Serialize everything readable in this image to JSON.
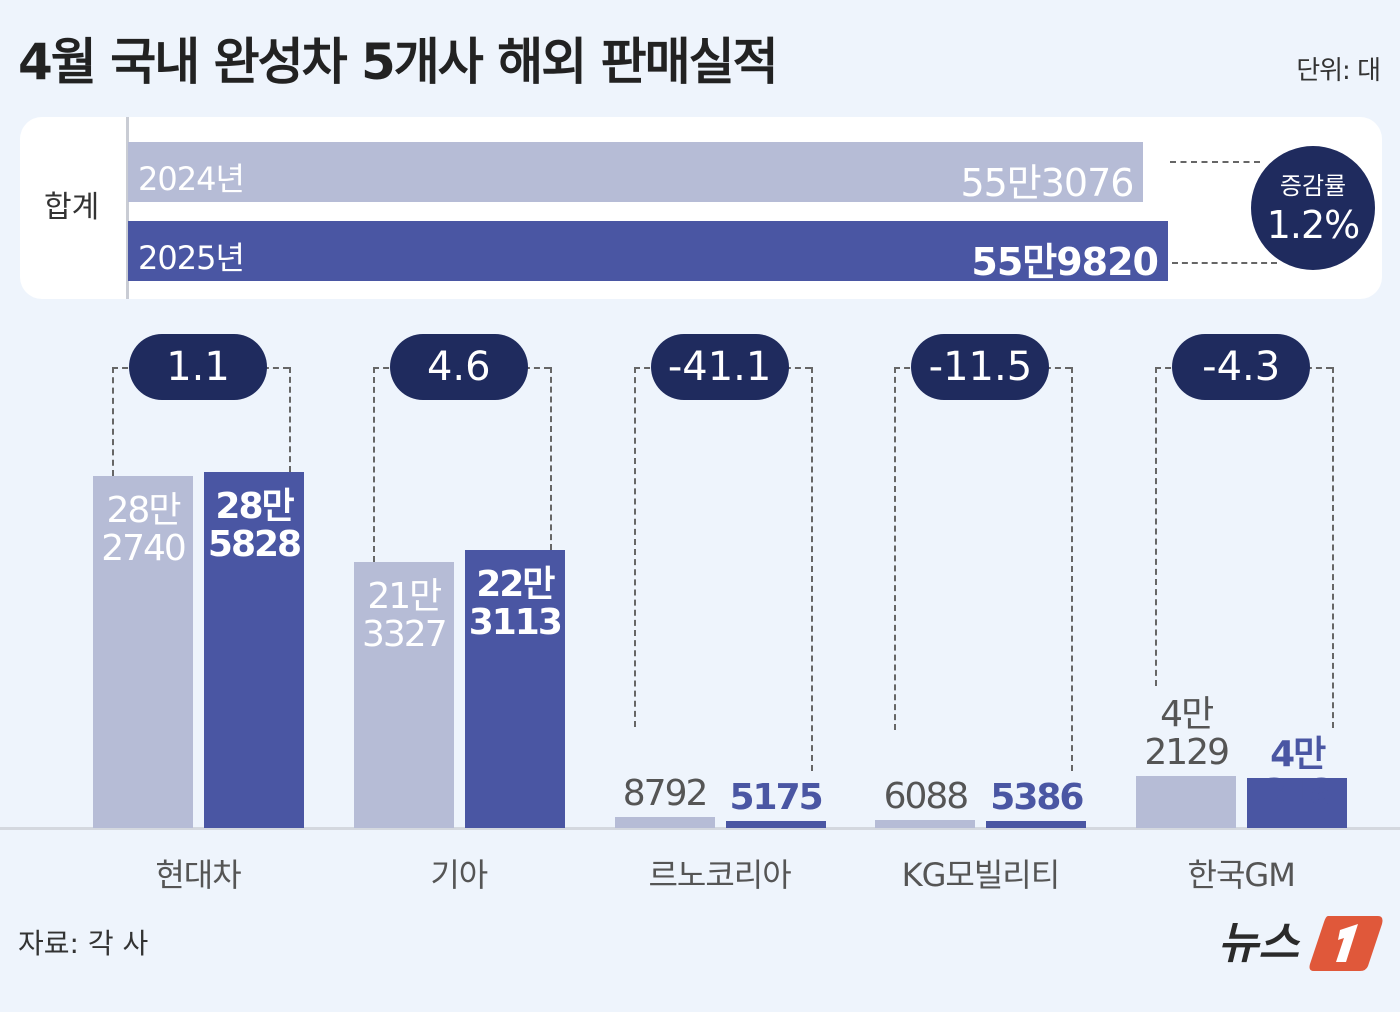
{
  "title": "4월 국내 완성차 5개사 해외 판매실적",
  "unit": "단위: 대",
  "source": "자료: 각 사",
  "logo_text": "뉴스1",
  "colors": {
    "y2024": "#b6bcd6",
    "y2025": "#4a56a3",
    "pill": "#1f2b5e",
    "background": "#eef4fc"
  },
  "totals": {
    "label": "합계",
    "rows": [
      {
        "year": "2024년",
        "value": 553076,
        "value_label": "55만3076"
      },
      {
        "year": "2025년",
        "value": 559820,
        "value_label": "55만9820"
      }
    ],
    "change_label": "증감률",
    "change_value": "1.2%"
  },
  "chart_data": {
    "type": "bar",
    "categories": [
      "현대차",
      "기아",
      "르노코리아",
      "KG모빌리티",
      "한국GM"
    ],
    "series": [
      {
        "name": "2024년",
        "values": [
          282740,
          213327,
          8792,
          6088,
          42129
        ],
        "labels": [
          [
            "28만",
            "2740"
          ],
          [
            "21만",
            "3327"
          ],
          [
            "8792"
          ],
          [
            "6088"
          ],
          [
            "4만",
            "2129"
          ]
        ]
      },
      {
        "name": "2025년",
        "values": [
          285828,
          223113,
          5175,
          5386,
          40318
        ],
        "labels": [
          [
            "28만",
            "5828"
          ],
          [
            "22만",
            "3113"
          ],
          [
            "5175"
          ],
          [
            "5386"
          ],
          [
            "4만318"
          ]
        ]
      }
    ],
    "change_pct": [
      "1.1",
      "4.6",
      "-41.1",
      "-11.5",
      "-4.3"
    ],
    "ylim": [
      0,
      300000
    ],
    "grid": false,
    "legend": "none"
  }
}
